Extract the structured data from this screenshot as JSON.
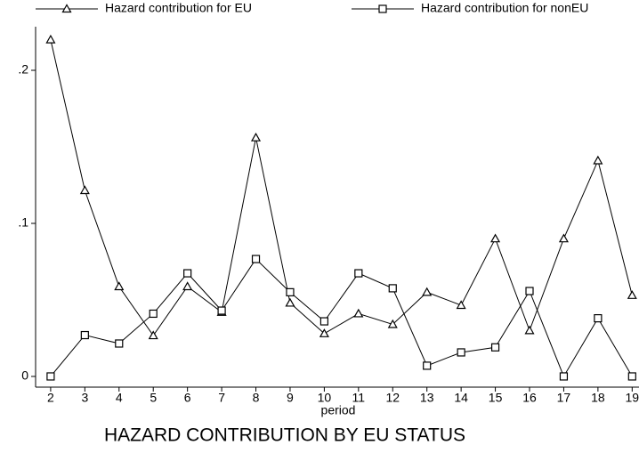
{
  "chart_data": {
    "type": "line",
    "title": "HAZARD CONTRIBUTION BY EU STATUS",
    "x_label": "period",
    "x": [
      2,
      3,
      4,
      5,
      6,
      7,
      8,
      9,
      10,
      11,
      12,
      13,
      14,
      15,
      16,
      17,
      18,
      19
    ],
    "series": [
      {
        "name": "Hazard contribution for EU",
        "color": "#000000",
        "marker": "triangle",
        "values": [
          0.22,
          0.1215,
          0.0587,
          0.0267,
          0.0587,
          0.042,
          0.156,
          0.048,
          0.028,
          0.041,
          0.034,
          0.055,
          0.0465,
          0.09,
          0.03,
          0.09,
          0.141,
          0.053
        ]
      },
      {
        "name": "Hazard contribution for nonEU",
        "color": "#000000",
        "marker": "square",
        "values": [
          0,
          0.027,
          0.0215,
          0.041,
          0.0674,
          0.043,
          0.0767,
          0.055,
          0.036,
          0.0674,
          0.0576,
          0.007,
          0.0157,
          0.019,
          0.0558,
          0,
          0.038,
          0
        ]
      }
    ],
    "xlim": [
      1.56,
      19.2
    ],
    "xticks": [
      2,
      3,
      4,
      5,
      6,
      7,
      8,
      9,
      10,
      11,
      12,
      13,
      14,
      15,
      16,
      17,
      18,
      19
    ],
    "ylim": [
      -0.007,
      0.2285
    ],
    "yticks": [
      0,
      {
        "value": 0.1,
        "label": ".1"
      },
      {
        "value": 0.2,
        "label": ".2"
      }
    ],
    "grid": false,
    "legend": "top"
  }
}
